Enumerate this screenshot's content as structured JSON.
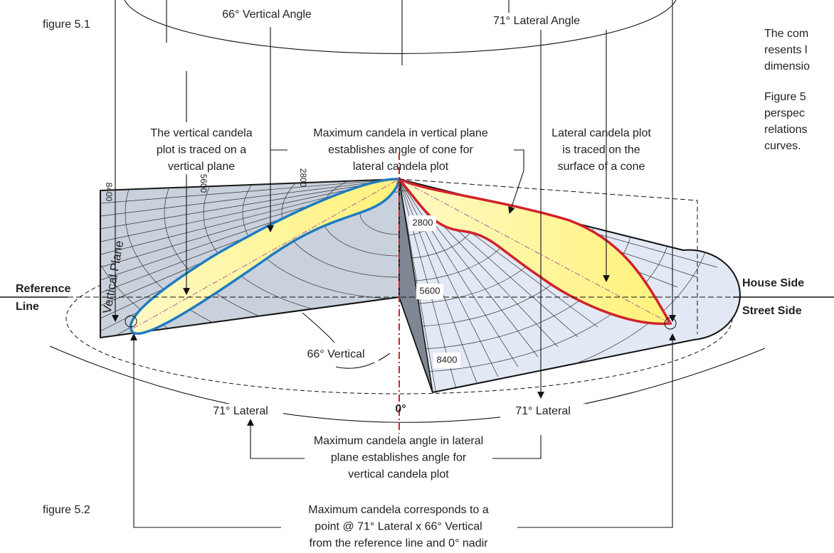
{
  "figure_labels": [
    "figure 5.1",
    "figure 5.2"
  ],
  "angle_labels": {
    "vertical_angle": "66° Vertical Angle",
    "lateral_angle": "71° Lateral Angle",
    "vertical": "66° Vertical",
    "lateral_left": "71° Lateral",
    "nadir": "0°",
    "lateral_right": "71° Lateral"
  },
  "callouts": [
    {
      "lines": [
        "The vertical candela",
        "plot is traced on a",
        "vertical plane"
      ]
    },
    {
      "lines": [
        "Maximum candela in vertical plane",
        "establishes angle of cone for",
        "lateral candela plot"
      ]
    },
    {
      "lines": [
        "Lateral candela plot",
        "is traced on the",
        "surface of a cone"
      ]
    },
    {
      "lines": [
        "Maximum candela angle in lateral",
        "plane establishes angle for",
        "vertical candela plot"
      ]
    },
    {
      "lines": [
        "Maximum candela corresponds to a",
        "point @ 71° Lateral x 66° Vertical",
        "from the reference line and 0° nadir"
      ]
    }
  ],
  "vertical_plane": {
    "label": "Vertical Plane",
    "candela_ticks": [
      8400,
      5600,
      2800
    ]
  },
  "cone": {
    "candela_ticks": [
      2800,
      5600,
      8400
    ]
  },
  "sides": {
    "reference": [
      "Reference",
      "Line"
    ],
    "house": "House Side",
    "street": "Street Side"
  },
  "side_text": {
    "paragraphs": [
      [
        "The com",
        "resents l",
        "dimensio"
      ],
      [
        "Figure 5",
        "perspec",
        "relations",
        "curves."
      ]
    ]
  }
}
